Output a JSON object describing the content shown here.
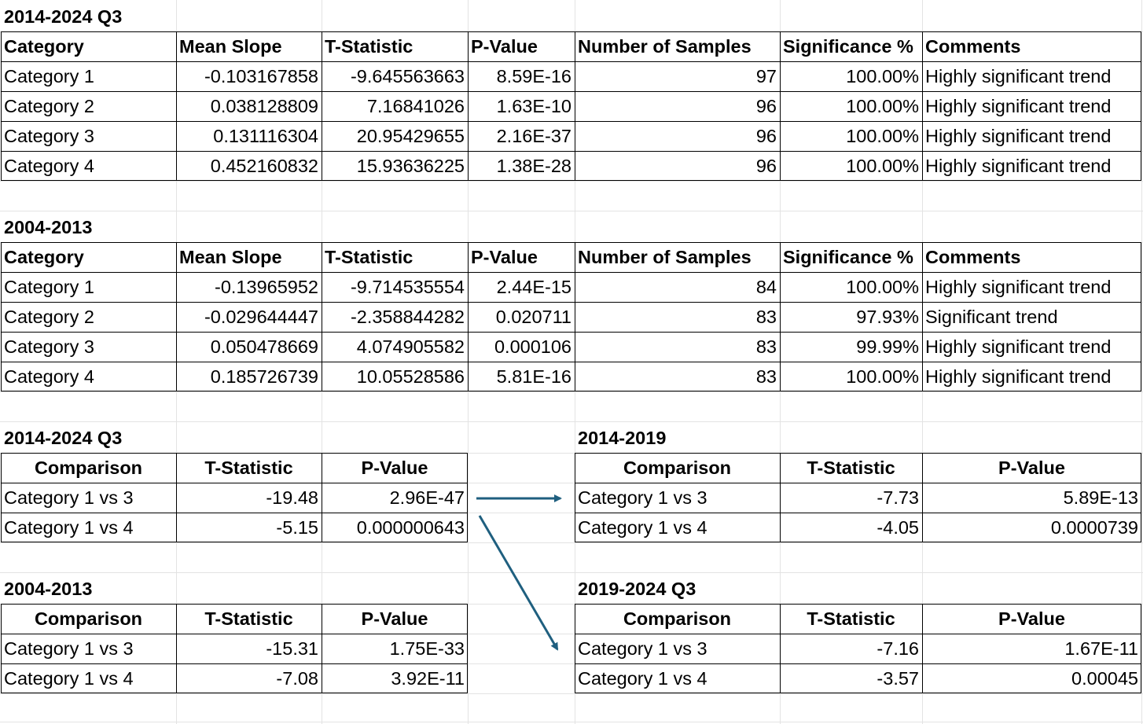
{
  "sections": {
    "top1": {
      "title": "2014-2024 Q3",
      "headers": [
        "Category",
        "Mean Slope",
        "T-Statistic",
        "P-Value",
        "Number of Samples",
        "Significance %",
        "Comments"
      ],
      "rows": [
        [
          "Category 1",
          "-0.103167858",
          "-9.645563663",
          "8.59E-16",
          "97",
          "100.00%",
          "Highly significant trend"
        ],
        [
          "Category 2",
          "0.038128809",
          "7.16841026",
          "1.63E-10",
          "96",
          "100.00%",
          "Highly significant trend"
        ],
        [
          "Category 3",
          "0.131116304",
          "20.95429655",
          "2.16E-37",
          "96",
          "100.00%",
          "Highly significant trend"
        ],
        [
          "Category 4",
          "0.452160832",
          "15.93636225",
          "1.38E-28",
          "96",
          "100.00%",
          "Highly significant trend"
        ]
      ]
    },
    "top2": {
      "title": "2004-2013",
      "headers": [
        "Category",
        "Mean Slope",
        "T-Statistic",
        "P-Value",
        "Number of Samples",
        "Significance %",
        "Comments"
      ],
      "rows": [
        [
          "Category 1",
          "-0.13965952",
          "-9.714535554",
          "2.44E-15",
          "84",
          "100.00%",
          "Highly significant trend"
        ],
        [
          "Category 2",
          "-0.029644447",
          "-2.358844282",
          "0.020711",
          "83",
          "97.93%",
          "Significant trend"
        ],
        [
          "Category 3",
          "0.050478669",
          "4.074905582",
          "0.000106",
          "83",
          "99.99%",
          "Highly significant trend"
        ],
        [
          "Category 4",
          "0.185726739",
          "10.05528586",
          "5.81E-16",
          "83",
          "100.00%",
          "Highly significant trend"
        ]
      ]
    },
    "cmpA": {
      "title": "2014-2024 Q3",
      "headers": [
        "Comparison",
        "T-Statistic",
        "P-Value"
      ],
      "rows": [
        [
          "Category 1 vs 3",
          "-19.48",
          "2.96E-47"
        ],
        [
          "Category 1 vs 4",
          "-5.15",
          "0.000000643"
        ]
      ]
    },
    "cmpB": {
      "title": "2014-2019",
      "headers": [
        "Comparison",
        "T-Statistic",
        "P-Value"
      ],
      "rows": [
        [
          "Category 1 vs 3",
          "-7.73",
          "5.89E-13"
        ],
        [
          "Category 1 vs 4",
          "-4.05",
          "0.0000739"
        ]
      ]
    },
    "cmpC": {
      "title": "2004-2013",
      "headers": [
        "Comparison",
        "T-Statistic",
        "P-Value"
      ],
      "rows": [
        [
          "Category 1 vs 3",
          "-15.31",
          "1.75E-33"
        ],
        [
          "Category 1 vs 4",
          "-7.08",
          "3.92E-11"
        ]
      ]
    },
    "cmpD": {
      "title": "2019-2024 Q3",
      "headers": [
        "Comparison",
        "T-Statistic",
        "P-Value"
      ],
      "rows": [
        [
          "Category 1 vs 3",
          "-7.16",
          "1.67E-11"
        ],
        [
          "Category 1 vs 4",
          "-3.57",
          "0.00045"
        ]
      ]
    }
  },
  "colors": {
    "arrow": "#1f5f7f",
    "gridline": "#e3e3e3",
    "border": "#000000"
  },
  "arrow_icon": "arrow-right-icon"
}
